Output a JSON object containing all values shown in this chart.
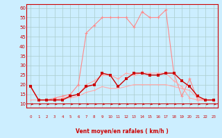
{
  "title": "",
  "xlabel": "Vent moyen/en rafales ( km/h )",
  "xlim": [
    -0.5,
    23.5
  ],
  "ylim": [
    8,
    62
  ],
  "yticks": [
    10,
    15,
    20,
    25,
    30,
    35,
    40,
    45,
    50,
    55,
    60
  ],
  "xticks": [
    0,
    1,
    2,
    3,
    4,
    5,
    6,
    7,
    8,
    9,
    10,
    11,
    12,
    13,
    14,
    15,
    16,
    17,
    18,
    19,
    20,
    21,
    22,
    23
  ],
  "bg_color": "#cceeff",
  "grid_color": "#aacccc",
  "line_gust_x": [
    0,
    1,
    2,
    3,
    4,
    5,
    6,
    7,
    8,
    9,
    10,
    11,
    12,
    13,
    14,
    15,
    16,
    17,
    18,
    19,
    20,
    21,
    22,
    23
  ],
  "line_gust_y": [
    19,
    12,
    12,
    13,
    14,
    15,
    20,
    47,
    51,
    55,
    55,
    55,
    55,
    50,
    58,
    55,
    55,
    59,
    26,
    14,
    23,
    12,
    12,
    12
  ],
  "line_gust_color": "#ff8888",
  "line_avg_x": [
    0,
    1,
    2,
    3,
    4,
    5,
    6,
    7,
    8,
    9,
    10,
    11,
    12,
    13,
    14,
    15,
    16,
    17,
    18,
    19,
    20,
    21,
    22,
    23
  ],
  "line_avg_y": [
    19,
    12,
    12,
    12,
    12,
    14,
    15,
    19,
    20,
    26,
    25,
    19,
    23,
    26,
    26,
    25,
    25,
    26,
    26,
    22,
    19,
    14,
    12,
    12
  ],
  "line_avg_color": "#cc0000",
  "line_min_x": [
    0,
    1,
    2,
    3,
    4,
    5,
    6,
    7,
    8,
    9,
    10,
    11,
    12,
    13,
    14,
    15,
    16,
    17,
    18,
    19,
    20,
    21,
    22,
    23
  ],
  "line_min_y": [
    12,
    12,
    12,
    12,
    13,
    13,
    14,
    16,
    17,
    19,
    18,
    18,
    19,
    20,
    20,
    20,
    20,
    20,
    19,
    18,
    17,
    13,
    12,
    12
  ],
  "line_min_color": "#ffaaaa",
  "line_mid_x": [
    0,
    1,
    2,
    3,
    4,
    5,
    6,
    7,
    8,
    9,
    10,
    11,
    12,
    13,
    14,
    15,
    16,
    17,
    18,
    19,
    20,
    21,
    22,
    23
  ],
  "line_mid_y": [
    19,
    12,
    12,
    12,
    13,
    14,
    15,
    20,
    22,
    25,
    25,
    23,
    26,
    25,
    26,
    26,
    26,
    26,
    22,
    19,
    13,
    12,
    12,
    12
  ],
  "line_mid_color": "#ffaaaa"
}
